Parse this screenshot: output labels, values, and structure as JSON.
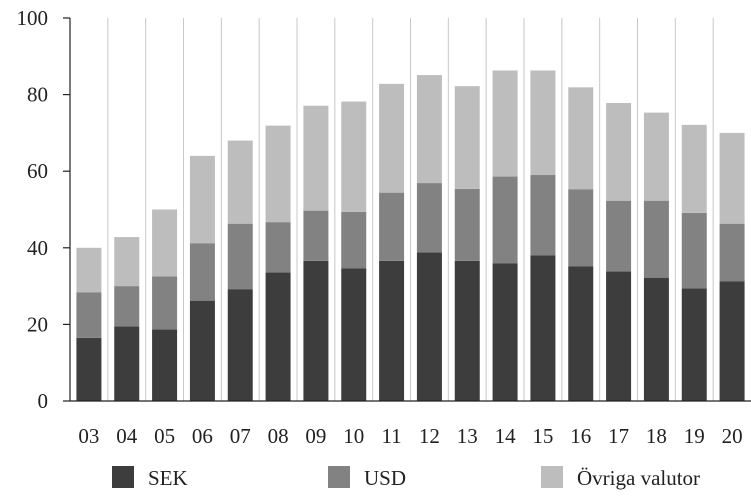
{
  "chart_data": {
    "type": "bar",
    "stacked": true,
    "categories": [
      "03",
      "04",
      "05",
      "06",
      "07",
      "08",
      "09",
      "10",
      "11",
      "12",
      "13",
      "14",
      "15",
      "16",
      "17",
      "18",
      "19",
      "20"
    ],
    "series": [
      {
        "name": "SEK",
        "color": "#3d3d3d",
        "values": [
          16.5,
          19.5,
          18.7,
          26.2,
          29.2,
          33.6,
          36.6,
          34.6,
          36.6,
          38.8,
          36.6,
          35.9,
          38.0,
          35.2,
          33.8,
          32.2,
          29.4,
          31.2
        ]
      },
      {
        "name": "USD",
        "color": "#828282",
        "values": [
          11.9,
          10.5,
          13.8,
          15.0,
          17.1,
          13.1,
          13.1,
          14.8,
          17.8,
          18.1,
          18.8,
          22.7,
          21.0,
          20.1,
          18.5,
          20.1,
          19.7,
          15.1
        ]
      },
      {
        "name": "Övriga valutor",
        "color": "#bdbdbd",
        "values": [
          11.6,
          12.8,
          17.5,
          22.8,
          21.7,
          25.2,
          27.4,
          28.8,
          28.4,
          28.2,
          26.8,
          27.7,
          27.3,
          26.6,
          25.5,
          23.0,
          23.0,
          23.7
        ]
      }
    ],
    "y_ticks": [
      "0",
      "20",
      "40",
      "60",
      "80",
      "100"
    ],
    "ylim": [
      0,
      100
    ],
    "grid": "vertical",
    "legend_position": "bottom"
  }
}
